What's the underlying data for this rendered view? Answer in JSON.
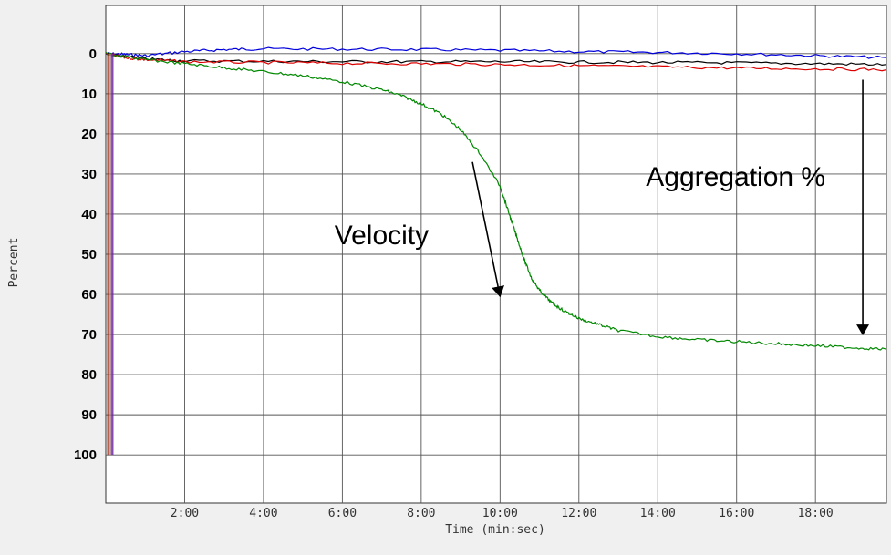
{
  "chart_data": {
    "type": "line",
    "xlabel": "Time (min:sec)",
    "ylabel": "Percent",
    "x_units": "minutes",
    "xlim": [
      0,
      19.8
    ],
    "ylim": [
      -12,
      112
    ],
    "y_inverted": true,
    "x_tick_values": [
      2,
      4,
      6,
      8,
      10,
      12,
      14,
      16,
      18
    ],
    "x_tick_labels": [
      "2:00",
      "4:00",
      "6:00",
      "8:00",
      "10:00",
      "12:00",
      "14:00",
      "16:00",
      "18:00"
    ],
    "y_ticks": [
      0,
      10,
      20,
      30,
      40,
      50,
      60,
      70,
      80,
      90,
      100
    ],
    "y_tick_labels": [
      "0",
      "10",
      "20",
      "30",
      "40",
      "50",
      "60",
      "70",
      "80",
      "90",
      "100"
    ],
    "grid": true,
    "series": [
      {
        "color": "#0000dd",
        "x": [
          0,
          0.5,
          1,
          2,
          3,
          4,
          6,
          8,
          10,
          12,
          14,
          16,
          18,
          19.8
        ],
        "y": [
          0,
          0.2,
          0.5,
          -0.5,
          -1,
          -1.2,
          -1.1,
          -1.0,
          -0.8,
          -0.5,
          -0.3,
          0,
          0.5,
          1
        ]
      },
      {
        "color": "#000000",
        "x": [
          0,
          0.5,
          1,
          2,
          4,
          6,
          8,
          10,
          12,
          14,
          16,
          18,
          19.8
        ],
        "y": [
          0,
          0.8,
          1.3,
          1.8,
          1.9,
          2.0,
          2.0,
          2.0,
          2.1,
          2.2,
          2.3,
          2.5,
          2.7
        ]
      },
      {
        "color": "#dd0000",
        "x": [
          0,
          0.5,
          1,
          2,
          4,
          6,
          8,
          10,
          12,
          14,
          16,
          18,
          19.8
        ],
        "y": [
          0,
          1.0,
          1.5,
          2.0,
          2.2,
          2.4,
          2.5,
          2.7,
          3.0,
          3.3,
          3.6,
          3.8,
          4.0
        ]
      },
      {
        "color": "#008800",
        "x": [
          0,
          0.5,
          1,
          2,
          3,
          4,
          5,
          6,
          7,
          7.5,
          8,
          8.5,
          9,
          9.5,
          10,
          10.2,
          10.4,
          10.6,
          10.8,
          11,
          11.3,
          11.6,
          12,
          12.5,
          13,
          14,
          15,
          16,
          17,
          18,
          19,
          19.8
        ],
        "y": [
          0,
          0.8,
          1.5,
          2.5,
          3.5,
          4.5,
          5.5,
          7,
          9,
          10.5,
          12.5,
          15,
          19,
          25,
          33,
          39,
          45,
          51,
          56,
          59,
          62,
          64,
          66,
          67.5,
          69,
          70.5,
          71.3,
          71.8,
          72.3,
          72.8,
          73.3,
          73.7
        ]
      }
    ],
    "injection_spike": {
      "x": 0.05,
      "y_from": 0,
      "y_to": 100,
      "colors": [
        "#c02020",
        "#00aa00",
        "#ff7777",
        "#0070c0",
        "#6a1fa0"
      ]
    },
    "annotations": [
      {
        "text": "Velocity",
        "x": 5.8,
        "y": 47.5
      },
      {
        "text": "Aggregation %",
        "x": 13.7,
        "y": 33
      }
    ],
    "arrows": [
      {
        "name": "velocity",
        "x1": 9.3,
        "y1": 27,
        "x2": 10.0,
        "y2": 60.5
      },
      {
        "name": "aggregation",
        "x1": 19.2,
        "y1": 6.5,
        "x2": 19.2,
        "y2": 70
      }
    ]
  }
}
